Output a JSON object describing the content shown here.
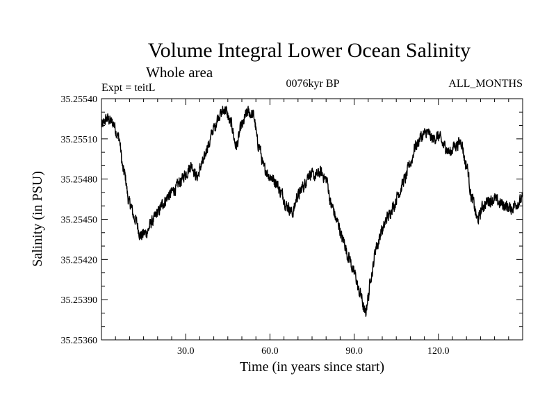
{
  "chart_data": {
    "type": "line",
    "title": "Volume Integral Lower Ocean Salinity",
    "subtitle": "Whole area",
    "annotations": {
      "left": "Expt = teitL",
      "center": "0076kyr BP",
      "right": "ALL_MONTHS"
    },
    "xlabel": "Time (in years since start)",
    "ylabel": "Salinity (in PSU)",
    "xlim": [
      0,
      150
    ],
    "ylim": [
      35.2536,
      35.2554
    ],
    "xticks": [
      30,
      60,
      90,
      120
    ],
    "xtick_labels": [
      "30.0",
      "60.0",
      "90.0",
      "120.0"
    ],
    "yticks": [
      35.2536,
      35.2539,
      35.2542,
      35.2545,
      35.2548,
      35.2551,
      35.2554
    ],
    "ytick_labels": [
      "35.25360",
      "35.25390",
      "35.25420",
      "35.25450",
      "35.25480",
      "35.25510",
      "35.25540"
    ],
    "grid": false,
    "series": [
      {
        "name": "salinity",
        "anchors_x": [
          0,
          2,
          4,
          6,
          8,
          10,
          12,
          14,
          16,
          18,
          20,
          22,
          24,
          26,
          28,
          30,
          32,
          34,
          36,
          38,
          40,
          42,
          44,
          46,
          48,
          50,
          52,
          54,
          56,
          58,
          60,
          62,
          64,
          66,
          68,
          70,
          72,
          74,
          76,
          78,
          80,
          82,
          84,
          86,
          88,
          90,
          92,
          94,
          95,
          96,
          98,
          100,
          102,
          104,
          106,
          108,
          110,
          112,
          114,
          116,
          118,
          120,
          122,
          124,
          126,
          128,
          130,
          132,
          134,
          136,
          138,
          140,
          142,
          144,
          146,
          148,
          150
        ],
        "anchors_y": [
          35.2552,
          35.25525,
          35.25522,
          35.25512,
          35.25485,
          35.25462,
          35.2545,
          35.25438,
          35.2544,
          35.25448,
          35.25455,
          35.25462,
          35.25468,
          35.25472,
          35.25478,
          35.25484,
          35.2549,
          35.25482,
          35.25492,
          35.25505,
          35.25518,
          35.25528,
          35.25532,
          35.25522,
          35.25505,
          35.2552,
          35.2553,
          35.25528,
          35.25505,
          35.25488,
          35.25482,
          35.25478,
          35.2547,
          35.2546,
          35.25455,
          35.25468,
          35.25475,
          35.25484,
          35.25482,
          35.25485,
          35.2548,
          35.2546,
          35.25448,
          35.25435,
          35.25422,
          35.2541,
          35.25395,
          35.2538,
          35.25392,
          35.25408,
          35.2543,
          35.25442,
          35.25452,
          35.2546,
          35.2547,
          35.2548,
          35.25492,
          35.25505,
          35.25512,
          35.25515,
          35.2551,
          35.25512,
          35.25505,
          35.255,
          35.25505,
          35.25508,
          35.2549,
          35.25465,
          35.2545,
          35.2546,
          35.25464,
          35.25465,
          35.25462,
          35.2546,
          35.25458,
          35.25462,
          35.25465
        ],
        "noise_amplitude": 6e-05,
        "samples": 1800
      }
    ]
  }
}
